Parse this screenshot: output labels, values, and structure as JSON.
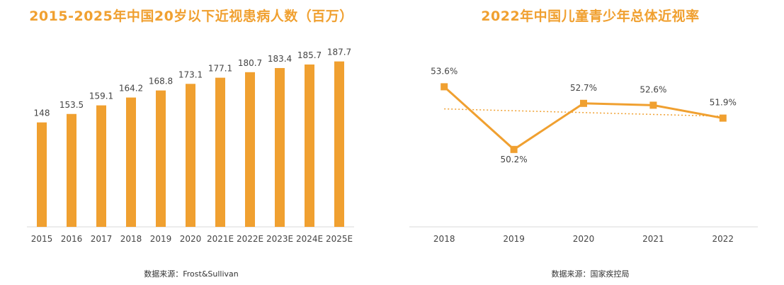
{
  "colors": {
    "accent": "#f0a030",
    "axis": "#d9d9d9",
    "text": "#444444"
  },
  "chart_data": [
    {
      "type": "bar",
      "title": "2015-2025年中国20岁以下近视患病人数（百万）",
      "source": "数据来源：Frost&Sullivan",
      "categories": [
        "2015",
        "2016",
        "2017",
        "2018",
        "2019",
        "2020",
        "2021E",
        "2022E",
        "2023E",
        "2024E",
        "2025E"
      ],
      "values": [
        148,
        153.5,
        159.1,
        164.2,
        168.8,
        173.1,
        177.1,
        180.7,
        183.4,
        185.7,
        187.7
      ],
      "value_labels": [
        "148",
        "153.5",
        "159.1",
        "164.2",
        "168.8",
        "173.1",
        "177.1",
        "180.7",
        "183.4",
        "185.7",
        "187.7"
      ],
      "ylim": [
        80,
        200
      ],
      "grid": false
    },
    {
      "type": "line",
      "title": "2022年中国儿童青少年总体近视率",
      "source": "数据来源：国家疾控局",
      "categories": [
        "2018",
        "2019",
        "2020",
        "2021",
        "2022"
      ],
      "values": [
        53.6,
        50.2,
        52.7,
        52.6,
        51.9
      ],
      "value_labels": [
        "53.6%",
        "50.2%",
        "52.7%",
        "52.6%",
        "51.9%"
      ],
      "trendline": "dotted linear",
      "ylim": [
        46,
        56
      ],
      "grid": false
    }
  ]
}
